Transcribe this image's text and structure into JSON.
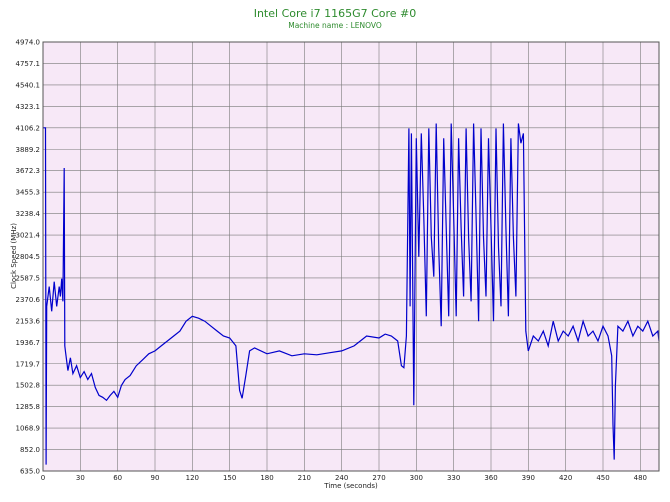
{
  "chart_data": {
    "type": "line",
    "title": "Intel Core i7 1165G7 Core #0",
    "subtitle": "Machine name : LENOVO",
    "xlabel": "Time (seconds)",
    "ylabel": "Clock Speed (MHz)",
    "xlim": [
      0,
      495
    ],
    "ylim": [
      635.0,
      4974.0
    ],
    "x_ticks": [
      0,
      30,
      60,
      90,
      120,
      150,
      180,
      210,
      240,
      270,
      300,
      330,
      360,
      390,
      420,
      450,
      480
    ],
    "y_ticks": [
      "635.0",
      "852.0",
      "1068.9",
      "1285.8",
      "1502.8",
      "1719.7",
      "1936.7",
      "2153.6",
      "2370.6",
      "2587.5",
      "2804.5",
      "3021.4",
      "3238.4",
      "3455.3",
      "3672.3",
      "3889.2",
      "4106.2",
      "4323.1",
      "4540.1",
      "4757.1",
      "4974.0"
    ],
    "grid": true,
    "colors": {
      "plot_bg": "#f7e8f7",
      "grid": "#7a7a7a",
      "line": "#0000cc",
      "title": "#2e8b2e"
    },
    "series": [
      {
        "values": [
          [
            0,
            4106
          ],
          [
            1,
            4106
          ],
          [
            2,
            4106
          ],
          [
            2.5,
            700
          ],
          [
            3,
            2300
          ],
          [
            5,
            2500
          ],
          [
            7,
            2250
          ],
          [
            9,
            2550
          ],
          [
            11,
            2300
          ],
          [
            13,
            2500
          ],
          [
            14,
            2400
          ],
          [
            15,
            2580
          ],
          [
            16,
            2350
          ],
          [
            17,
            3700
          ],
          [
            17.5,
            1900
          ],
          [
            18,
            1850
          ],
          [
            20,
            1650
          ],
          [
            22,
            1780
          ],
          [
            24,
            1620
          ],
          [
            27,
            1700
          ],
          [
            30,
            1580
          ],
          [
            33,
            1640
          ],
          [
            36,
            1560
          ],
          [
            39,
            1620
          ],
          [
            42,
            1480
          ],
          [
            45,
            1400
          ],
          [
            48,
            1380
          ],
          [
            51,
            1350
          ],
          [
            54,
            1400
          ],
          [
            57,
            1440
          ],
          [
            60,
            1380
          ],
          [
            63,
            1500
          ],
          [
            66,
            1560
          ],
          [
            70,
            1600
          ],
          [
            75,
            1700
          ],
          [
            80,
            1760
          ],
          [
            85,
            1820
          ],
          [
            90,
            1850
          ],
          [
            95,
            1900
          ],
          [
            100,
            1950
          ],
          [
            105,
            2000
          ],
          [
            110,
            2050
          ],
          [
            115,
            2150
          ],
          [
            120,
            2200
          ],
          [
            125,
            2180
          ],
          [
            130,
            2150
          ],
          [
            135,
            2100
          ],
          [
            140,
            2050
          ],
          [
            145,
            2000
          ],
          [
            150,
            1980
          ],
          [
            155,
            1900
          ],
          [
            158,
            1450
          ],
          [
            160,
            1370
          ],
          [
            163,
            1600
          ],
          [
            166,
            1850
          ],
          [
            170,
            1880
          ],
          [
            180,
            1820
          ],
          [
            190,
            1850
          ],
          [
            200,
            1800
          ],
          [
            210,
            1820
          ],
          [
            220,
            1810
          ],
          [
            230,
            1830
          ],
          [
            240,
            1850
          ],
          [
            250,
            1900
          ],
          [
            255,
            1950
          ],
          [
            260,
            2000
          ],
          [
            270,
            1980
          ],
          [
            275,
            2020
          ],
          [
            280,
            2000
          ],
          [
            285,
            1950
          ],
          [
            288,
            1700
          ],
          [
            290,
            1680
          ],
          [
            292,
            2000
          ],
          [
            294,
            4100
          ],
          [
            295,
            2300
          ],
          [
            296,
            4050
          ],
          [
            298,
            1300
          ],
          [
            300,
            4000
          ],
          [
            302,
            2800
          ],
          [
            304,
            4050
          ],
          [
            306,
            3200
          ],
          [
            308,
            2200
          ],
          [
            310,
            4100
          ],
          [
            312,
            3000
          ],
          [
            314,
            2600
          ],
          [
            316,
            4150
          ],
          [
            318,
            2900
          ],
          [
            320,
            2100
          ],
          [
            322,
            4000
          ],
          [
            324,
            3100
          ],
          [
            326,
            2200
          ],
          [
            328,
            4150
          ],
          [
            330,
            3200
          ],
          [
            332,
            2200
          ],
          [
            334,
            4000
          ],
          [
            336,
            3100
          ],
          [
            338,
            2400
          ],
          [
            340,
            4100
          ],
          [
            342,
            3000
          ],
          [
            344,
            2350
          ],
          [
            346,
            4150
          ],
          [
            348,
            3200
          ],
          [
            350,
            2150
          ],
          [
            352,
            4100
          ],
          [
            354,
            3000
          ],
          [
            356,
            2400
          ],
          [
            358,
            4000
          ],
          [
            360,
            3100
          ],
          [
            362,
            2150
          ],
          [
            364,
            4100
          ],
          [
            366,
            2900
          ],
          [
            368,
            2300
          ],
          [
            370,
            4150
          ],
          [
            372,
            3100
          ],
          [
            374,
            2200
          ],
          [
            376,
            4000
          ],
          [
            378,
            3000
          ],
          [
            380,
            2400
          ],
          [
            382,
            4150
          ],
          [
            384,
            3950
          ],
          [
            386,
            4050
          ],
          [
            388,
            2050
          ],
          [
            390,
            1850
          ],
          [
            394,
            2000
          ],
          [
            398,
            1950
          ],
          [
            402,
            2050
          ],
          [
            406,
            1900
          ],
          [
            410,
            2150
          ],
          [
            414,
            1950
          ],
          [
            418,
            2050
          ],
          [
            422,
            2000
          ],
          [
            426,
            2100
          ],
          [
            430,
            1950
          ],
          [
            434,
            2150
          ],
          [
            438,
            2000
          ],
          [
            442,
            2050
          ],
          [
            446,
            1950
          ],
          [
            450,
            2100
          ],
          [
            454,
            2000
          ],
          [
            457,
            1800
          ],
          [
            458,
            1100
          ],
          [
            459,
            750
          ],
          [
            460,
            1500
          ],
          [
            462,
            2100
          ],
          [
            466,
            2050
          ],
          [
            470,
            2150
          ],
          [
            474,
            2000
          ],
          [
            478,
            2100
          ],
          [
            482,
            2050
          ],
          [
            486,
            2150
          ],
          [
            490,
            2000
          ],
          [
            494,
            2050
          ],
          [
            495,
            1950
          ]
        ]
      }
    ]
  }
}
